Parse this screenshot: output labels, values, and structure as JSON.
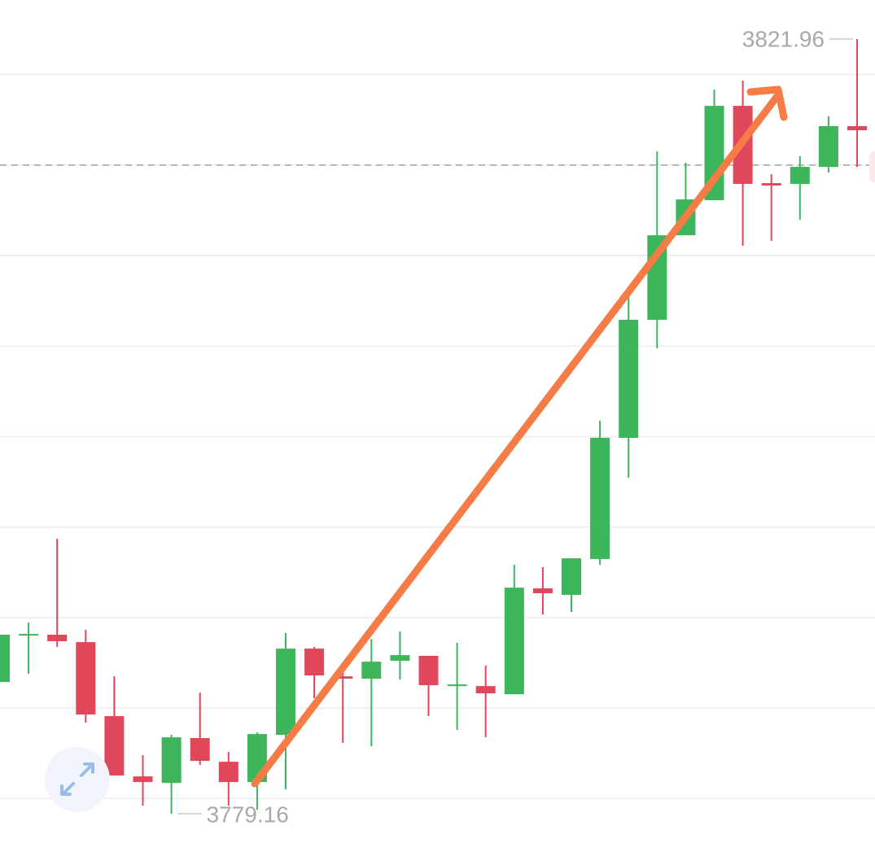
{
  "chart_data": {
    "type": "candlestick",
    "open": [
      3786.44,
      3789.0,
      3789.05,
      3788.64,
      3784.55,
      3781.22,
      3780.86,
      3783.34,
      3782.03,
      3780.91,
      3783.52,
      3788.28,
      3786.75,
      3786.62,
      3787.61,
      3787.88,
      3786.21,
      3786.21,
      3785.76,
      3791.61,
      3791.25,
      3793.23,
      3799.93,
      3806.45,
      3811.12,
      3813.06,
      3818.27,
      3814.0,
      3813.96,
      3814.9,
      3817.15
    ],
    "high": [
      3789.05,
      3789.72,
      3794.35,
      3789.32,
      3786.75,
      3782.39,
      3783.52,
      3785.85,
      3782.57,
      3783.65,
      3789.14,
      3788.37,
      3787.47,
      3788.82,
      3789.23,
      3787.88,
      3788.6,
      3787.34,
      3792.91,
      3792.78,
      3793.27,
      3800.87,
      3807.84,
      3815.75,
      3815.13,
      3819.17,
      3819.67,
      3814.5,
      3815.49,
      3817.69,
      3821.96
    ],
    "low": [
      3786.44,
      3786.89,
      3788.37,
      3784.19,
      3781.27,
      3779.6,
      3779.16,
      3781.85,
      3779.6,
      3779.38,
      3780.5,
      3785.54,
      3783.07,
      3782.89,
      3786.57,
      3784.55,
      3783.79,
      3783.38,
      3785.76,
      3790.17,
      3790.31,
      3792.91,
      3797.72,
      3804.87,
      3811.12,
      3813.06,
      3810.54,
      3810.81,
      3811.98,
      3814.59,
      3814.9
    ],
    "close": [
      3789.05,
      3789.09,
      3788.69,
      3784.64,
      3781.27,
      3780.91,
      3783.38,
      3782.08,
      3780.91,
      3783.56,
      3788.28,
      3786.8,
      3786.62,
      3787.56,
      3787.92,
      3786.26,
      3786.3,
      3785.81,
      3791.65,
      3791.34,
      3793.27,
      3799.93,
      3806.45,
      3811.12,
      3813.1,
      3818.27,
      3813.96,
      3813.87,
      3814.9,
      3817.15,
      3816.92
    ],
    "up_color": "#3cb55b",
    "down_color": "#e0475a",
    "ylim": [
      3777.54,
      3824.12
    ],
    "yticks": [
      3780,
      3785,
      3790,
      3795,
      3800,
      3805,
      3810,
      3815,
      3820
    ],
    "grid": true,
    "price_line": 3815,
    "max_label": 3821.96,
    "min_label": 3779.16
  }
}
